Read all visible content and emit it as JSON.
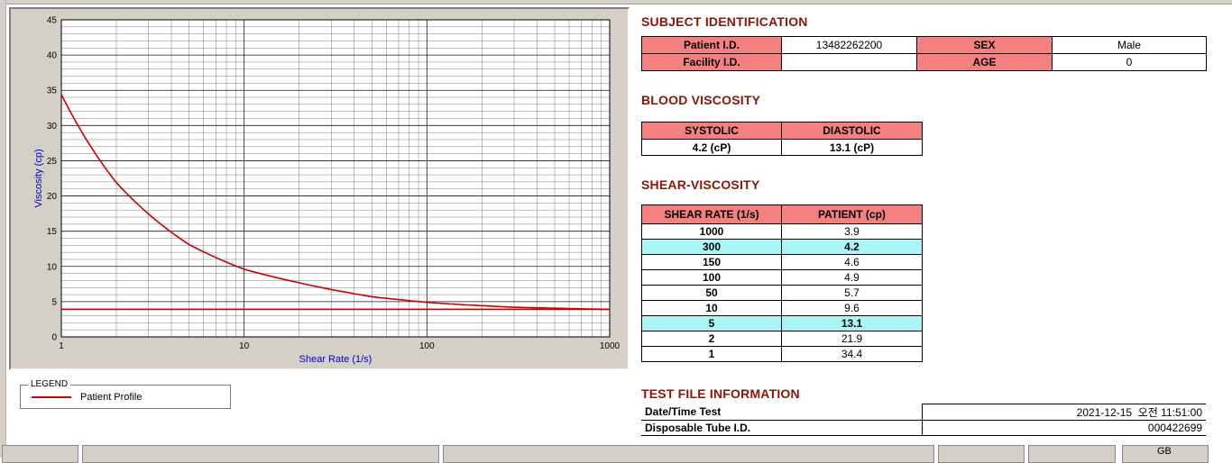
{
  "colors": {
    "heading": "#8b1505",
    "table_header_bg": "#f48080",
    "row_highlight_bg": "#aaf5f5",
    "axis_label": "#0000cc",
    "curve": "#cc0000",
    "chrome": "#d4d0c8",
    "grid_minor": "#6f6f6f",
    "grid_major": "#1a1a1a"
  },
  "chart_data": {
    "type": "line",
    "xlabel": "Shear Rate (1/s)",
    "ylabel": "Viscosity (cp)",
    "x_scale": "log",
    "xlim": [
      1,
      1000
    ],
    "ylim": [
      0,
      45
    ],
    "x_ticks": [
      1,
      10,
      100,
      1000
    ],
    "y_ticks": [
      0,
      5,
      10,
      15,
      20,
      25,
      30,
      35,
      40,
      45
    ],
    "y_minor_step": 1,
    "grid": true,
    "series": [
      {
        "name": "Patient Profile",
        "color": "#cc0000",
        "x": [
          1,
          2,
          5,
          10,
          50,
          100,
          150,
          300,
          1000
        ],
        "y": [
          34.4,
          21.9,
          13.1,
          9.6,
          5.7,
          4.9,
          4.6,
          4.2,
          3.9
        ]
      }
    ],
    "reference_line": {
      "y": 3.9,
      "color": "#cc0000"
    },
    "legend": {
      "title": "LEGEND",
      "position": "below-left",
      "items": [
        {
          "label": "Patient Profile",
          "color": "#cc0000"
        }
      ]
    }
  },
  "sections": {
    "subject": {
      "title": "SUBJECT IDENTIFICATION",
      "rows": [
        {
          "label1": "Patient I.D.",
          "value1": "13482262200",
          "label2": "SEX",
          "value2": "Male"
        },
        {
          "label1": "Facility I.D.",
          "value1": "",
          "label2": "AGE",
          "value2": "0"
        }
      ]
    },
    "blood_viscosity": {
      "title": "BLOOD VISCOSITY",
      "headers": [
        "SYSTOLIC",
        "DIASTOLIC"
      ],
      "values": [
        "4.2 (cP)",
        "13.1 (cP)"
      ]
    },
    "shear_viscosity": {
      "title": "SHEAR-VISCOSITY",
      "headers": [
        "SHEAR RATE (1/s)",
        "PATIENT (cp)"
      ],
      "rows": [
        {
          "rate": "1000",
          "value": "3.9",
          "highlight": false
        },
        {
          "rate": "300",
          "value": "4.2",
          "highlight": true
        },
        {
          "rate": "150",
          "value": "4.6",
          "highlight": false
        },
        {
          "rate": "100",
          "value": "4.9",
          "highlight": false
        },
        {
          "rate": "50",
          "value": "5.7",
          "highlight": false
        },
        {
          "rate": "10",
          "value": "9.6",
          "highlight": false
        },
        {
          "rate": "5",
          "value": "13.1",
          "highlight": true
        },
        {
          "rate": "2",
          "value": "21.9",
          "highlight": false
        },
        {
          "rate": "1",
          "value": "34.4",
          "highlight": false
        }
      ]
    },
    "test_file": {
      "title": "TEST FILE INFORMATION",
      "rows": [
        {
          "label": "Date/Time Test",
          "value": "2021-12-15  오전 11:51:00"
        },
        {
          "label": "Disposable Tube I.D.",
          "value": "000422699"
        }
      ]
    }
  },
  "statusbar": {
    "language_label": "GB"
  }
}
